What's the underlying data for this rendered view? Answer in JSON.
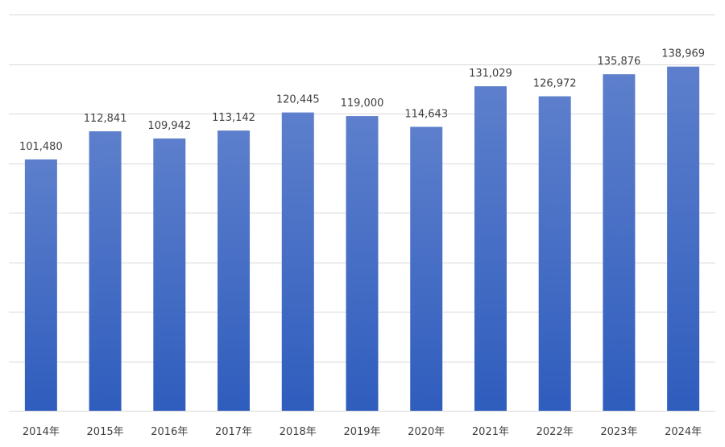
{
  "chart_data": {
    "type": "bar",
    "categories": [
      "2014年",
      "2015年",
      "2016年",
      "2017年",
      "2018年",
      "2019年",
      "2020年",
      "2021年",
      "2022年",
      "2023年",
      "2024年"
    ],
    "values": [
      101480,
      112841,
      109942,
      113142,
      120445,
      119000,
      114643,
      131029,
      126972,
      135876,
      138969
    ],
    "value_labels": [
      "101,480",
      "112,841",
      "109,942",
      "113,142",
      "120,445",
      "119,000",
      "114,643",
      "131,029",
      "126,972",
      "135,876",
      "138,969"
    ],
    "title": "",
    "xlabel": "",
    "ylabel": "",
    "ylim": [
      0,
      160000
    ],
    "grid": true,
    "legend": "none",
    "colors": {
      "bar_top": "#5d7fcc",
      "bar_bottom": "#2f5dbd",
      "grid": "#d9d9d9",
      "text": "#404040"
    }
  }
}
